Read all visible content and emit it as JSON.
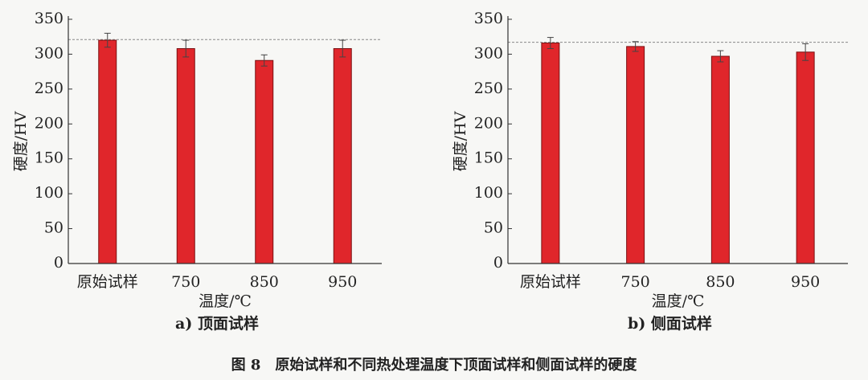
{
  "chart_data": [
    {
      "type": "bar",
      "subtitle": "a) 顶面试样",
      "xlabel": "温度/℃",
      "ylabel": "硬度/HV",
      "categories": [
        "原始试样",
        "750",
        "850",
        "950"
      ],
      "values": [
        320,
        308,
        291,
        308
      ],
      "errors": [
        10,
        12,
        8,
        12
      ],
      "color": "#e0262b",
      "reference_line": 321,
      "ylim": [
        0,
        350
      ],
      "yticks": [
        0,
        50,
        100,
        150,
        200,
        250,
        300,
        350
      ]
    },
    {
      "type": "bar",
      "subtitle": "b) 侧面试样",
      "xlabel": "温度/℃",
      "ylabel": "硬度/HV",
      "categories": [
        "原始试样",
        "750",
        "850",
        "950"
      ],
      "values": [
        316,
        311,
        297,
        303
      ],
      "errors": [
        8,
        7,
        8,
        12
      ],
      "color": "#e0262b",
      "reference_line": 317,
      "ylim": [
        0,
        350
      ],
      "yticks": [
        0,
        50,
        100,
        150,
        200,
        250,
        300,
        350
      ]
    }
  ],
  "caption": "图 8　原始试样和不同热处理温度下顶面试样和侧面试样的硬度"
}
